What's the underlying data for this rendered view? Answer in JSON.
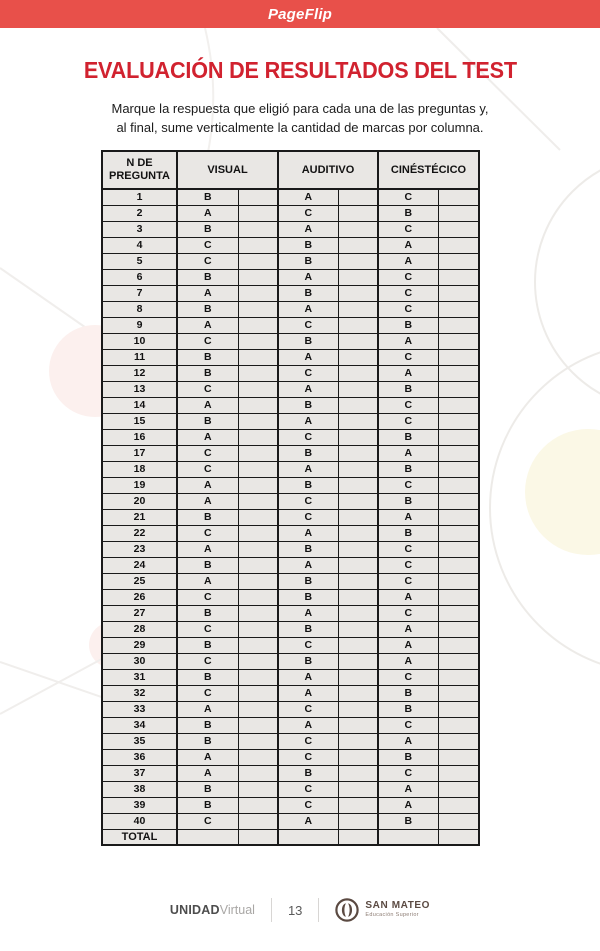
{
  "viewer": {
    "brand": "PageFlip"
  },
  "content": {
    "title": "EVALUACIÓN DE RESULTADOS DEL TEST",
    "instructions_line1": "Marque la respuesta que eligió para cada una de las preguntas y,",
    "instructions_line2": "al final, sume verticalmente la cantidad de marcas por columna."
  },
  "table": {
    "question_header": "N DE PREGUNTA",
    "columns": [
      "VISUAL",
      "AUDITIVO",
      "CINÉSTÉCICO"
    ],
    "total_label": "TOTAL",
    "rows": [
      {
        "n": "1",
        "visual": "B",
        "auditivo": "A",
        "cinestecico": "C"
      },
      {
        "n": "2",
        "visual": "A",
        "auditivo": "C",
        "cinestecico": "B"
      },
      {
        "n": "3",
        "visual": "B",
        "auditivo": "A",
        "cinestecico": "C"
      },
      {
        "n": "4",
        "visual": "C",
        "auditivo": "B",
        "cinestecico": "A"
      },
      {
        "n": "5",
        "visual": "C",
        "auditivo": "B",
        "cinestecico": "A"
      },
      {
        "n": "6",
        "visual": "B",
        "auditivo": "A",
        "cinestecico": "C"
      },
      {
        "n": "7",
        "visual": "A",
        "auditivo": "B",
        "cinestecico": "C"
      },
      {
        "n": "8",
        "visual": "B",
        "auditivo": "A",
        "cinestecico": "C"
      },
      {
        "n": "9",
        "visual": "A",
        "auditivo": "C",
        "cinestecico": "B"
      },
      {
        "n": "10",
        "visual": "C",
        "auditivo": "B",
        "cinestecico": "A"
      },
      {
        "n": "11",
        "visual": "B",
        "auditivo": "A",
        "cinestecico": "C"
      },
      {
        "n": "12",
        "visual": "B",
        "auditivo": "C",
        "cinestecico": "A"
      },
      {
        "n": "13",
        "visual": "C",
        "auditivo": "A",
        "cinestecico": "B"
      },
      {
        "n": "14",
        "visual": "A",
        "auditivo": "B",
        "cinestecico": "C"
      },
      {
        "n": "15",
        "visual": "B",
        "auditivo": "A",
        "cinestecico": "C"
      },
      {
        "n": "16",
        "visual": "A",
        "auditivo": "C",
        "cinestecico": "B"
      },
      {
        "n": "17",
        "visual": "C",
        "auditivo": "B",
        "cinestecico": "A"
      },
      {
        "n": "18",
        "visual": "C",
        "auditivo": "A",
        "cinestecico": "B"
      },
      {
        "n": "19",
        "visual": "A",
        "auditivo": "B",
        "cinestecico": "C"
      },
      {
        "n": "20",
        "visual": "A",
        "auditivo": "C",
        "cinestecico": "B"
      },
      {
        "n": "21",
        "visual": "B",
        "auditivo": "C",
        "cinestecico": "A"
      },
      {
        "n": "22",
        "visual": "C",
        "auditivo": "A",
        "cinestecico": "B"
      },
      {
        "n": "23",
        "visual": "A",
        "auditivo": "B",
        "cinestecico": "C"
      },
      {
        "n": "24",
        "visual": "B",
        "auditivo": "A",
        "cinestecico": "C"
      },
      {
        "n": "25",
        "visual": "A",
        "auditivo": "B",
        "cinestecico": "C"
      },
      {
        "n": "26",
        "visual": "C",
        "auditivo": "B",
        "cinestecico": "A"
      },
      {
        "n": "27",
        "visual": "B",
        "auditivo": "A",
        "cinestecico": "C"
      },
      {
        "n": "28",
        "visual": "C",
        "auditivo": "B",
        "cinestecico": "A"
      },
      {
        "n": "29",
        "visual": "B",
        "auditivo": "C",
        "cinestecico": "A"
      },
      {
        "n": "30",
        "visual": "C",
        "auditivo": "B",
        "cinestecico": "A"
      },
      {
        "n": "31",
        "visual": "B",
        "auditivo": "A",
        "cinestecico": "C"
      },
      {
        "n": "32",
        "visual": "C",
        "auditivo": "A",
        "cinestecico": "B"
      },
      {
        "n": "33",
        "visual": "A",
        "auditivo": "C",
        "cinestecico": "B"
      },
      {
        "n": "34",
        "visual": "B",
        "auditivo": "A",
        "cinestecico": "C"
      },
      {
        "n": "35",
        "visual": "B",
        "auditivo": "C",
        "cinestecico": "A"
      },
      {
        "n": "36",
        "visual": "A",
        "auditivo": "C",
        "cinestecico": "B"
      },
      {
        "n": "37",
        "visual": "A",
        "auditivo": "B",
        "cinestecico": "C"
      },
      {
        "n": "38",
        "visual": "B",
        "auditivo": "C",
        "cinestecico": "A"
      },
      {
        "n": "39",
        "visual": "B",
        "auditivo": "C",
        "cinestecico": "A"
      },
      {
        "n": "40",
        "visual": "C",
        "auditivo": "A",
        "cinestecico": "B"
      }
    ]
  },
  "footer": {
    "brand_bold": "UNIDAD",
    "brand_light": "Virtual",
    "page_number": "13",
    "logo_name": "SAN MATEO",
    "logo_tagline": "Educación Superior"
  },
  "colors": {
    "viewer_bar_red": "#e8504a",
    "title_red": "#d1222f",
    "table_cell_gray": "#e9e7e4",
    "table_border": "#1a1a1a",
    "logo_brown": "#5b4a42",
    "decor_pink": "#fcf0ee",
    "decor_yellow": "#fbf8e6"
  }
}
